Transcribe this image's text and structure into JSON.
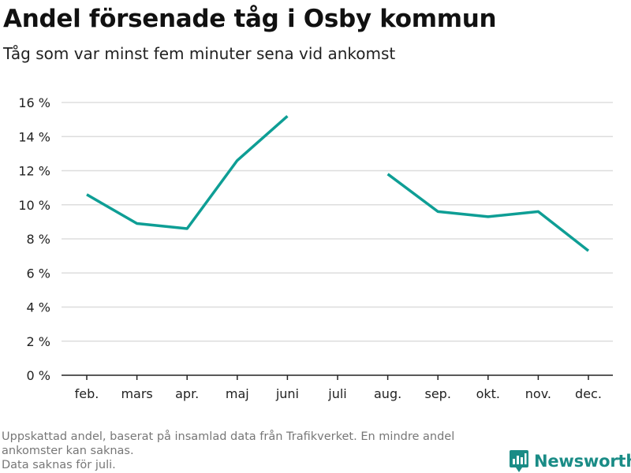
{
  "title": "Andel försenade tåg i Osby kommun",
  "subtitle": "Tåg som var minst fem minuter sena vid ankomst",
  "footnote": {
    "lines": [
      "Uppskattad andel, baserat på insamlad data från Trafikverket. En mindre andel",
      "ankomster kan saknas.",
      "Data saknas för juli."
    ]
  },
  "brand": {
    "name": "Newsworthy",
    "color": "#1a8c86",
    "icon": "bar-chart-logo-icon"
  },
  "colors": {
    "line": "#0e9e95",
    "grid": "#dddddd",
    "axis": "#222222"
  },
  "chart_data": {
    "type": "line",
    "categories": [
      "feb.",
      "mars",
      "apr.",
      "maj",
      "juni",
      "juli",
      "aug.",
      "sep.",
      "okt.",
      "nov.",
      "dec."
    ],
    "series": [
      {
        "values": [
          10.6,
          8.9,
          8.6,
          12.6,
          15.2,
          null,
          11.8,
          9.6,
          9.3,
          9.6,
          7.3
        ]
      }
    ],
    "ylim": [
      0,
      16
    ],
    "yticks": [
      0,
      2,
      4,
      6,
      8,
      10,
      12,
      14,
      16
    ],
    "ytick_suffix": " %",
    "grid": true,
    "legend": "none"
  }
}
